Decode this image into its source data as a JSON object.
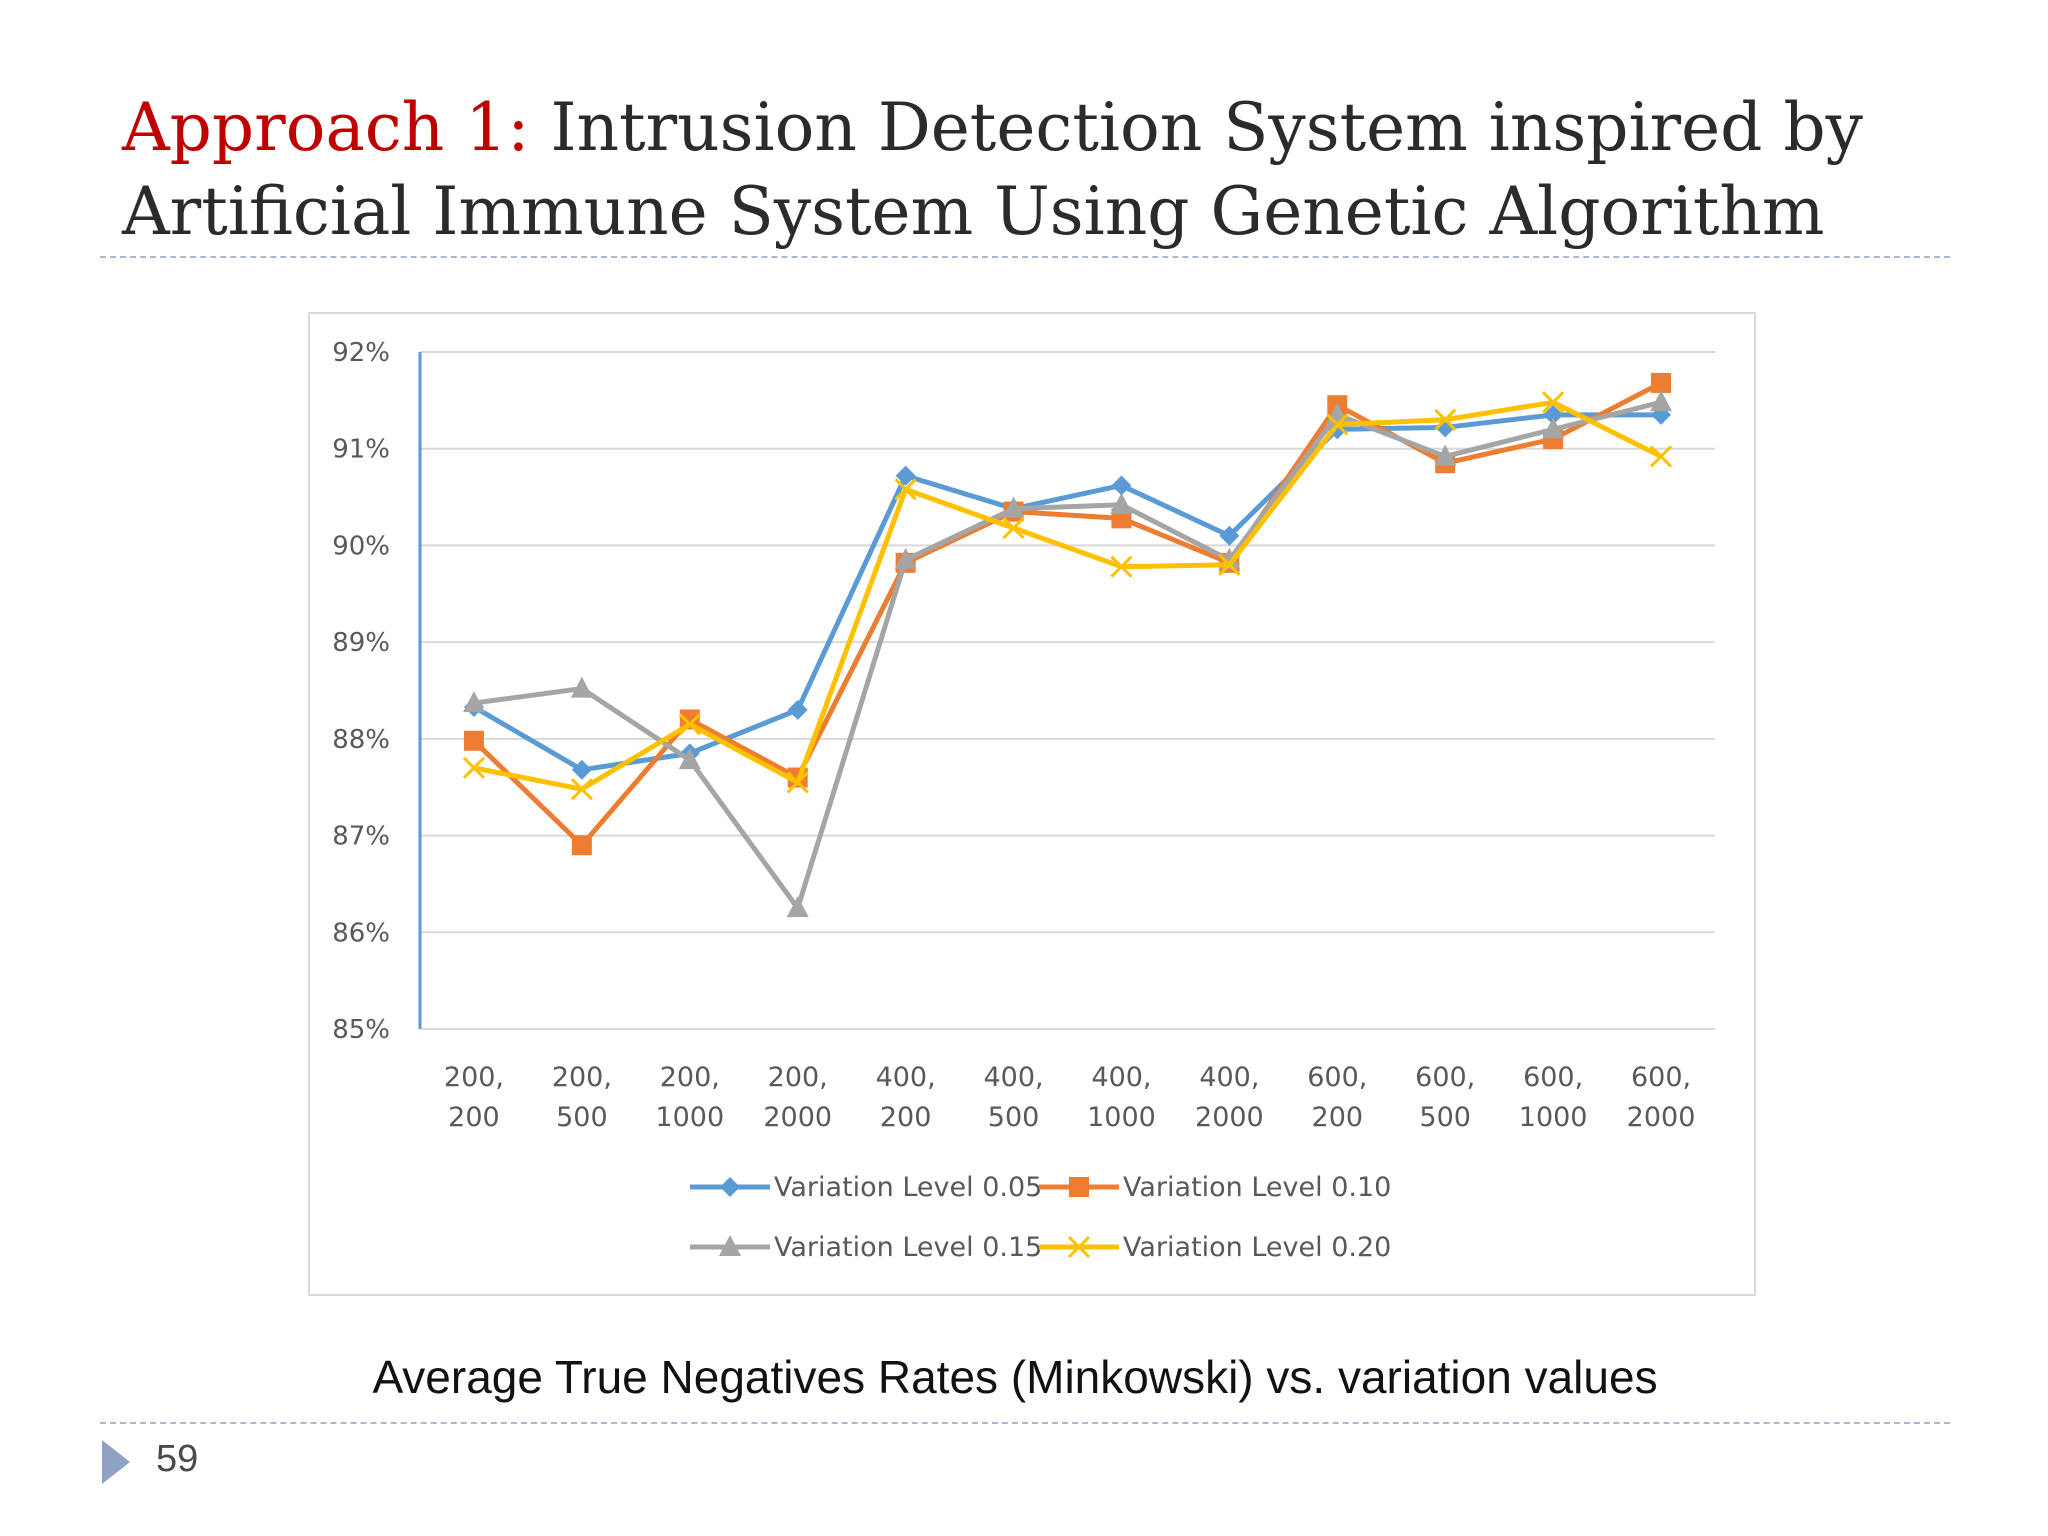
{
  "slide": {
    "title_prefix": "Approach 1:",
    "title_rest": " Intrusion Detection System inspired by Artificial Immune System Using Genetic Algorithm",
    "caption": "Average True Negatives Rates (Minkowski) vs. variation values",
    "page_number": "59"
  },
  "colors": {
    "title_accent": "#c00000",
    "series": [
      "#5b9bd5",
      "#ed7d31",
      "#a5a5a5",
      "#ffc000"
    ],
    "gridline": "#d9d9d9",
    "y_axis_line": "#5b9bd5"
  },
  "icons": {
    "footer": "triangle-bullet-icon"
  },
  "chart_data": {
    "type": "line",
    "title": "",
    "xlabel": "",
    "ylabel": "",
    "ylim": [
      0.85,
      0.92
    ],
    "yticks": [
      "92%",
      "91%",
      "90%",
      "89%",
      "88%",
      "87%",
      "86%",
      "85%"
    ],
    "ytick_values": [
      0.92,
      0.91,
      0.9,
      0.89,
      0.88,
      0.87,
      0.86,
      0.85
    ],
    "grid": true,
    "legend_position": "bottom",
    "categories": [
      [
        "200,",
        "200"
      ],
      [
        "200,",
        "500"
      ],
      [
        "200,",
        "1000"
      ],
      [
        "200,",
        "2000"
      ],
      [
        "400,",
        "200"
      ],
      [
        "400,",
        "500"
      ],
      [
        "400,",
        "1000"
      ],
      [
        "400,",
        "2000"
      ],
      [
        "600,",
        "200"
      ],
      [
        "600,",
        "500"
      ],
      [
        "600,",
        "1000"
      ],
      [
        "600,",
        "2000"
      ]
    ],
    "series": [
      {
        "name": "Variation Level 0.05",
        "marker": "diamond",
        "values": [
          0.8833,
          0.8768,
          0.8785,
          0.883,
          0.9072,
          0.9038,
          0.9062,
          0.901,
          0.912,
          0.9122,
          0.9135,
          0.9135
        ]
      },
      {
        "name": "Variation Level 0.10",
        "marker": "square",
        "values": [
          0.8798,
          0.869,
          0.882,
          0.876,
          0.8982,
          0.9035,
          0.9028,
          0.8982,
          0.9145,
          0.9085,
          0.911,
          0.9168
        ]
      },
      {
        "name": "Variation Level 0.15",
        "marker": "triangle",
        "values": [
          0.8837,
          0.8852,
          0.8778,
          0.8625,
          0.8985,
          0.9038,
          0.9042,
          0.8985,
          0.9135,
          0.9092,
          0.912,
          0.9148
        ]
      },
      {
        "name": "Variation Level 0.20",
        "marker": "x",
        "values": [
          0.877,
          0.8748,
          0.8815,
          0.8755,
          0.9058,
          0.9018,
          0.8978,
          0.898,
          0.9125,
          0.913,
          0.9148,
          0.9092
        ]
      }
    ]
  }
}
